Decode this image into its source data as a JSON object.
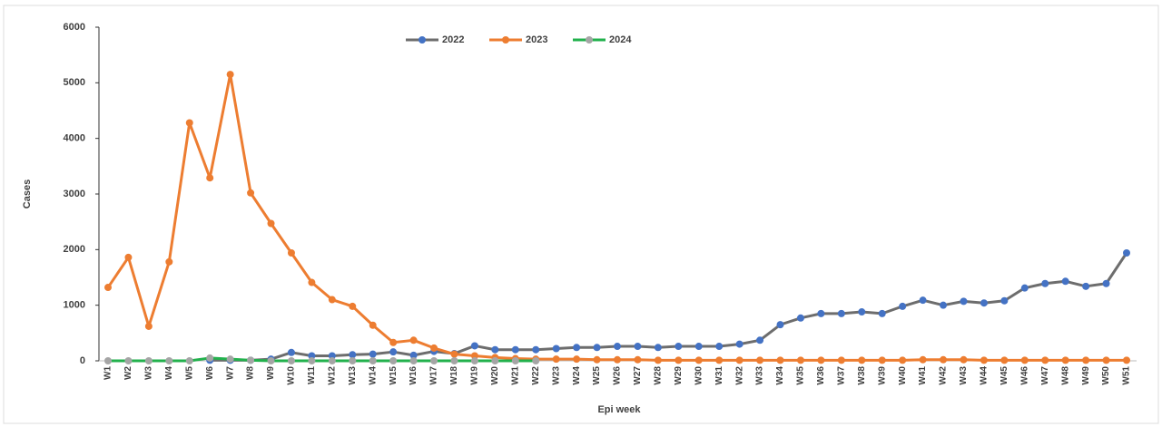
{
  "chart_data": {
    "type": "line",
    "x_label": "Epi week",
    "y_label": "Cases",
    "categories": [
      "W1",
      "W2",
      "W3",
      "W4",
      "W5",
      "W6",
      "W7",
      "W8",
      "W9",
      "W10",
      "W11",
      "W12",
      "W13",
      "W14",
      "W15",
      "W16",
      "W17",
      "W18",
      "W19",
      "W20",
      "W21",
      "W22",
      "W23",
      "W24",
      "W25",
      "W26",
      "W27",
      "W28",
      "W29",
      "W30",
      "W31",
      "W32",
      "W33",
      "W34",
      "W35",
      "W36",
      "W37",
      "W38",
      "W39",
      "W40",
      "W41",
      "W42",
      "W43",
      "W44",
      "W45",
      "W46",
      "W47",
      "W48",
      "W49",
      "W50",
      "W51"
    ],
    "series": [
      {
        "name": "2022",
        "color": "#6d6d6d",
        "marker_color": "#4472c4",
        "values": [
          null,
          null,
          null,
          null,
          null,
          10,
          10,
          10,
          30,
          150,
          90,
          90,
          110,
          120,
          160,
          100,
          170,
          130,
          270,
          200,
          200,
          200,
          220,
          240,
          240,
          260,
          260,
          240,
          260,
          260,
          260,
          300,
          370,
          650,
          770,
          850,
          850,
          880,
          850,
          980,
          1090,
          1000,
          1070,
          1040,
          1080,
          1310,
          1390,
          1430,
          1340,
          1390,
          1940
        ]
      },
      {
        "name": "2023",
        "color": "#ed7d31",
        "marker_color": "#ed7d31",
        "values": [
          1320,
          1860,
          620,
          1780,
          4280,
          3290,
          5150,
          3020,
          2470,
          1940,
          1410,
          1100,
          980,
          640,
          330,
          370,
          230,
          120,
          90,
          60,
          40,
          30,
          30,
          30,
          20,
          20,
          20,
          10,
          10,
          10,
          10,
          10,
          10,
          10,
          10,
          10,
          10,
          10,
          10,
          10,
          20,
          20,
          20,
          10,
          10,
          10,
          10,
          10,
          10,
          10,
          10
        ]
      },
      {
        "name": "2024",
        "color": "#22b14c",
        "marker_color": "#a5a5a5",
        "values": [
          0,
          0,
          0,
          0,
          0,
          50,
          30,
          10,
          0,
          0,
          0,
          0,
          0,
          0,
          0,
          0,
          0,
          0,
          0,
          0,
          0,
          0,
          null,
          null,
          null,
          null,
          null,
          null,
          null,
          null,
          null,
          null,
          null,
          null,
          null,
          null,
          null,
          null,
          null,
          null,
          null,
          null,
          null,
          null,
          null,
          null,
          null,
          null,
          null,
          null,
          null
        ]
      }
    ],
    "ylim": [
      0,
      6000
    ],
    "yticks": [
      0,
      1000,
      2000,
      3000,
      4000,
      5000,
      6000
    ],
    "grid": false,
    "legend": "top"
  }
}
